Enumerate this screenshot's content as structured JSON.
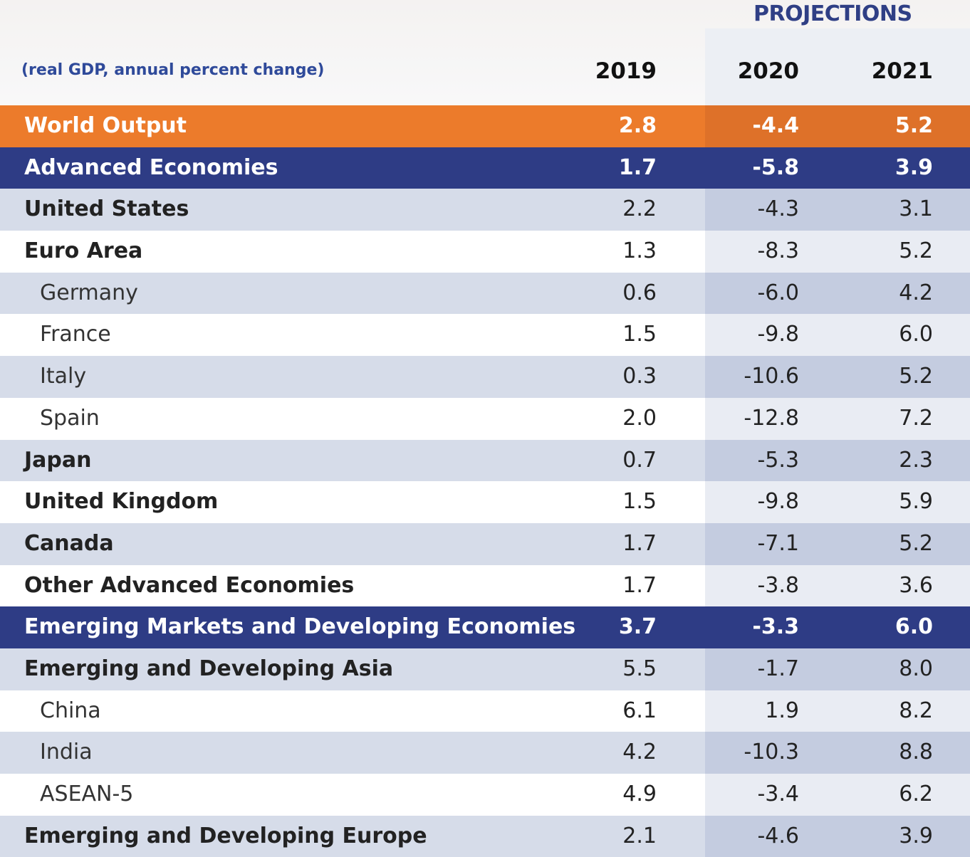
{
  "header": {
    "projections_label": "PROJECTIONS",
    "unit_label": "(real GDP, annual percent change)",
    "years": [
      "2019",
      "2020",
      "2021"
    ]
  },
  "colors": {
    "orange": "#ec7b2b",
    "navy": "#2e3c85",
    "stripe": "#d6dce9"
  },
  "chart_data": {
    "type": "table",
    "columns": [
      "2019",
      "2020",
      "2021"
    ],
    "rows": [
      {
        "label": "World Output",
        "values": [
          "2.8",
          "-4.4",
          "5.2"
        ],
        "style": "orange",
        "indent": false
      },
      {
        "label": "Advanced Economies",
        "values": [
          "1.7",
          "-5.8",
          "3.9"
        ],
        "style": "navy",
        "indent": false
      },
      {
        "label": "United States",
        "values": [
          "2.2",
          "-4.3",
          "3.1"
        ],
        "style": "light",
        "indent": false
      },
      {
        "label": "Euro Area",
        "values": [
          "1.3",
          "-8.3",
          "5.2"
        ],
        "style": "white",
        "indent": false
      },
      {
        "label": "Germany",
        "values": [
          "0.6",
          "-6.0",
          "4.2"
        ],
        "style": "light",
        "indent": true
      },
      {
        "label": "France",
        "values": [
          "1.5",
          "-9.8",
          "6.0"
        ],
        "style": "white",
        "indent": true
      },
      {
        "label": "Italy",
        "values": [
          "0.3",
          "-10.6",
          "5.2"
        ],
        "style": "light",
        "indent": true
      },
      {
        "label": "Spain",
        "values": [
          "2.0",
          "-12.8",
          "7.2"
        ],
        "style": "white",
        "indent": true
      },
      {
        "label": "Japan",
        "values": [
          "0.7",
          "-5.3",
          "2.3"
        ],
        "style": "light",
        "indent": false
      },
      {
        "label": "United Kingdom",
        "values": [
          "1.5",
          "-9.8",
          "5.9"
        ],
        "style": "white",
        "indent": false
      },
      {
        "label": "Canada",
        "values": [
          "1.7",
          "-7.1",
          "5.2"
        ],
        "style": "light",
        "indent": false
      },
      {
        "label": "Other Advanced Economies",
        "values": [
          "1.7",
          "-3.8",
          "3.6"
        ],
        "style": "white",
        "indent": false
      },
      {
        "label": "Emerging Markets and Developing Economies",
        "values": [
          "3.7",
          "-3.3",
          "6.0"
        ],
        "style": "navy",
        "indent": false
      },
      {
        "label": "Emerging and Developing Asia",
        "values": [
          "5.5",
          "-1.7",
          "8.0"
        ],
        "style": "light",
        "indent": false
      },
      {
        "label": "China",
        "values": [
          "6.1",
          "1.9",
          "8.2"
        ],
        "style": "white",
        "indent": true
      },
      {
        "label": "India",
        "values": [
          "4.2",
          "-10.3",
          "8.8"
        ],
        "style": "light",
        "indent": true
      },
      {
        "label": "ASEAN-5",
        "values": [
          "4.9",
          "-3.4",
          "6.2"
        ],
        "style": "white",
        "indent": true
      },
      {
        "label": "Emerging and Developing Europe",
        "values": [
          "2.1",
          "-4.6",
          "3.9"
        ],
        "style": "light",
        "indent": false
      }
    ]
  }
}
